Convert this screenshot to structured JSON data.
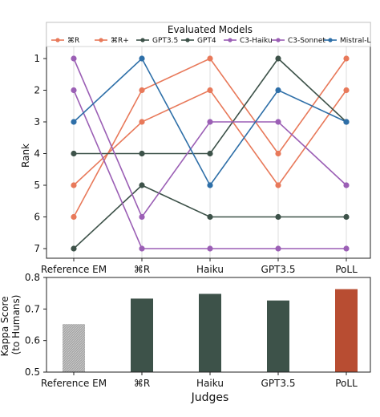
{
  "chart_data": [
    {
      "type": "line",
      "ylabel": "Rank",
      "y_inverted": true,
      "ylim": [
        1,
        7
      ],
      "yticks": [
        "1",
        "2",
        "3",
        "4",
        "5",
        "6",
        "7"
      ],
      "grid": "vertical",
      "categories": [
        "Reference EM",
        "⌘R",
        "Haiku",
        "GPT3.5",
        "PoLL"
      ],
      "legend": {
        "title": "Evaluated Models",
        "placement": "top"
      },
      "series": [
        {
          "name": "⌘R",
          "color": "#e8795a",
          "values": [
            6,
            2,
            1,
            4,
            1
          ]
        },
        {
          "name": "⌘R+",
          "color": "#e8795a",
          "values": [
            5,
            3,
            2,
            5,
            2
          ]
        },
        {
          "name": "GPT3.5",
          "color": "#3d5249",
          "values": [
            4,
            4,
            4,
            1,
            3
          ]
        },
        {
          "name": "GPT4",
          "color": "#3d5249",
          "values": [
            7,
            5,
            6,
            6,
            6
          ]
        },
        {
          "name": "C3-Haiku",
          "color": "#9b5fb5",
          "values": [
            1,
            6,
            3,
            3,
            5
          ]
        },
        {
          "name": "C3-Sonnet",
          "color": "#9b5fb5",
          "values": [
            2,
            7,
            7,
            7,
            7
          ]
        },
        {
          "name": "Mistral-L",
          "color": "#2e6fa8",
          "values": [
            3,
            1,
            5,
            2,
            3
          ]
        }
      ]
    },
    {
      "type": "bar",
      "ylabel": "Kappa Score\n(to Humans)",
      "xlabel": "Judges",
      "ylim": [
        0.5,
        0.8
      ],
      "yticks": [
        "0.5",
        "0.6",
        "0.7",
        "0.8"
      ],
      "categories": [
        "Reference EM",
        "⌘R",
        "Haiku",
        "GPT3.5",
        "PoLL"
      ],
      "values": [
        0.652,
        0.733,
        0.748,
        0.727,
        0.763
      ],
      "colors": [
        "#a6a6a6",
        "#3d5249",
        "#3d5249",
        "#3d5249",
        "#b84d32"
      ],
      "hatched": [
        true,
        false,
        false,
        false,
        false
      ]
    }
  ]
}
